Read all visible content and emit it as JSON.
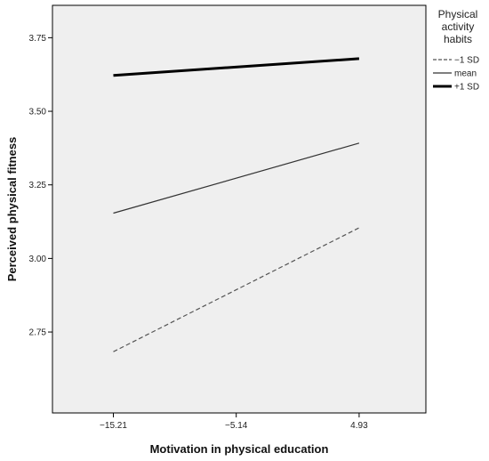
{
  "chart_data": {
    "type": "line",
    "x": [
      -15.21,
      4.93
    ],
    "x_ticks": [
      "−15.21",
      "−5.14",
      "4.93"
    ],
    "x_tick_values": [
      -15.21,
      -5.14,
      4.93
    ],
    "y_ticks": [
      "2.75",
      "3.00",
      "3.25",
      "3.50",
      "3.75"
    ],
    "y_tick_values": [
      2.75,
      3.0,
      3.25,
      3.5,
      3.75
    ],
    "xlim": [
      -20.2,
      10.4
    ],
    "ylim": [
      2.475,
      3.86
    ],
    "xlabel": "Motivation in physical education",
    "ylabel": "Perceived physical fitness",
    "grid": false,
    "legend": {
      "placement": "top-right",
      "title_lines": [
        "Physical",
        "activity",
        "habits"
      ]
    },
    "series": [
      {
        "name": "−1 SD",
        "values": [
          2.683,
          3.104
        ],
        "style": "dashed",
        "color": "#555555"
      },
      {
        "name": "mean",
        "values": [
          3.154,
          3.392
        ],
        "style": "thin",
        "color": "#333333"
      },
      {
        "name": "+1 SD",
        "values": [
          3.622,
          3.679
        ],
        "style": "thick",
        "color": "#000000"
      }
    ],
    "colors": {
      "plot_background": "#efefef",
      "frame": "#000000"
    }
  }
}
